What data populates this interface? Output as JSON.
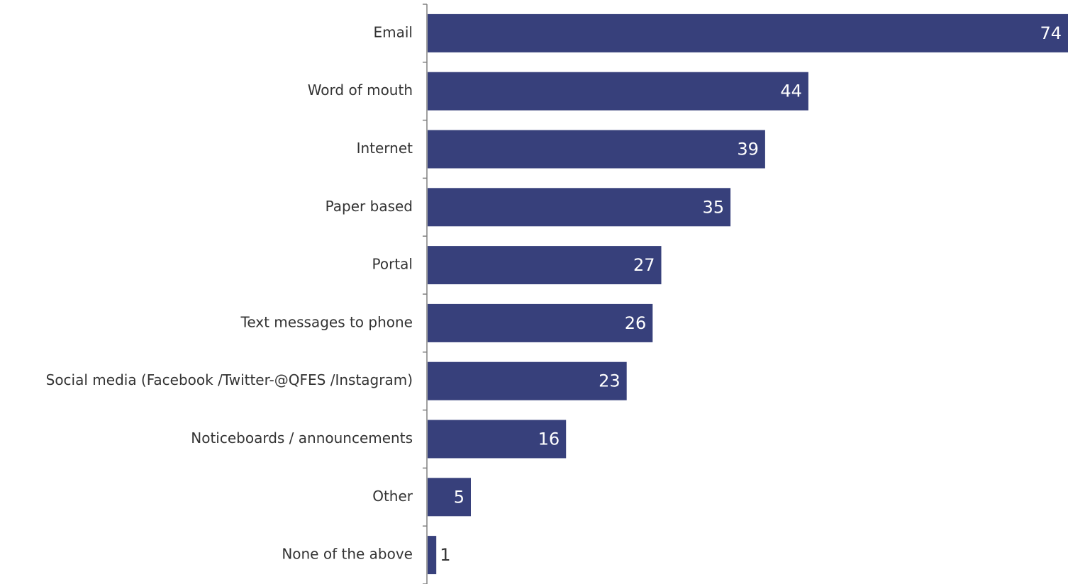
{
  "chart_data": {
    "type": "bar",
    "orientation": "horizontal",
    "title": "",
    "xlabel": "",
    "ylabel": "",
    "categories": [
      "Email",
      "Word of mouth",
      "Internet",
      "Paper based",
      "Portal",
      "Text messages to phone",
      "Social media (Facebook /Twitter-@QFES /Instagram)",
      "Noticeboards / announcements",
      "Other",
      "None of the above"
    ],
    "values": [
      74,
      44,
      39,
      35,
      27,
      26,
      23,
      16,
      5,
      1
    ],
    "xlim": [
      0,
      74
    ],
    "grid": false,
    "legend": "none",
    "data_labels": "inside-end",
    "colors": {
      "bar": "#37407b",
      "axis": "#808080",
      "label_text": "#333333",
      "value_text_inside": "#ffffff",
      "value_text_outside": "#333333"
    }
  }
}
